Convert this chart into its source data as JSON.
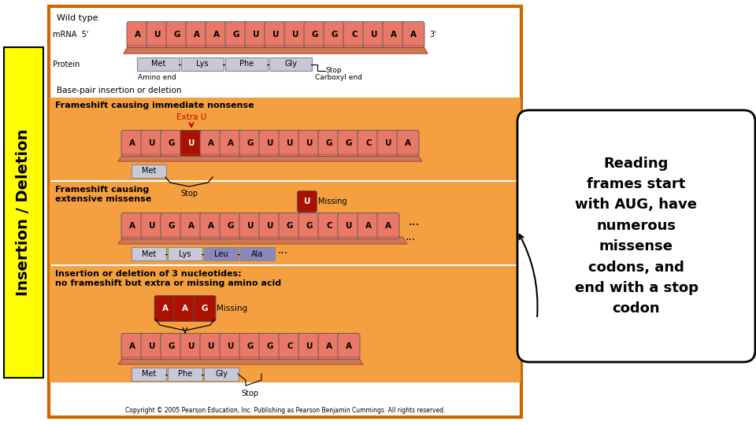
{
  "title_side": "Insertion / Deletion",
  "title_side_bg": "#FFFF00",
  "main_border_color": "#CC6600",
  "callout_text": "Reading\nframes start\nwith AUG, have\nnumerous\nmissense\ncodons, and\nend with a stop\ncodon",
  "section_bg": "#F5A040",
  "nucleotide_salmon": "#E87868",
  "nucleotide_dark_red": "#AA1100",
  "nucleotide_shelf": "#CC7755",
  "protein_gray": "#C8C8D8",
  "protein_blue": "#8888BB",
  "copyright": "Copyright © 2005 Pearson Education, Inc. Publishing as Pearson Benjamin Cummings. All rights reserved.",
  "wt_seq": [
    "A",
    "U",
    "G",
    "A",
    "A",
    "G",
    "U",
    "U",
    "U",
    "G",
    "G",
    "C",
    "U",
    "A",
    "A"
  ],
  "s2_seq": [
    "A",
    "U",
    "G",
    "U",
    "A",
    "A",
    "G",
    "U",
    "U",
    "U",
    "G",
    "G",
    "C",
    "U",
    "A"
  ],
  "s3_seq": [
    "A",
    "U",
    "G",
    "A",
    "A",
    "G",
    "U",
    "U",
    "G",
    "G",
    "C",
    "U",
    "A",
    "A"
  ],
  "s4_seq": [
    "A",
    "U",
    "G",
    "U",
    "U",
    "U",
    "G",
    "G",
    "C",
    "U",
    "A",
    "A"
  ],
  "s4_aag": [
    "A",
    "A",
    "G"
  ]
}
